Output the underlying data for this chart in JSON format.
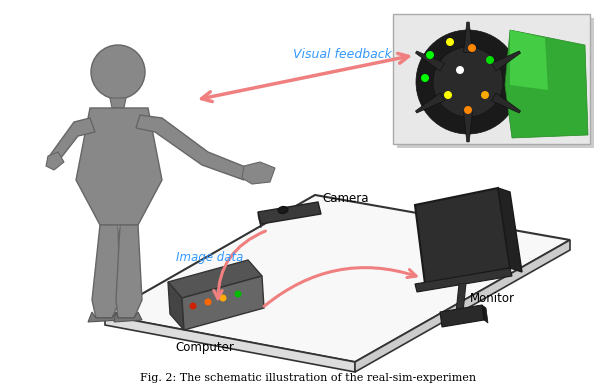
{
  "title": "",
  "caption": "Fig. 2: The schematic illustration of the real-sim-experimen",
  "background_color": "#ffffff",
  "labels": {
    "visual_feedback": "Visual feedback",
    "image_data": "Image data",
    "camera": "Camera",
    "computer": "Computer",
    "monitor": "Monitor"
  },
  "label_color": "#3399ff",
  "device_label_color": "#000000",
  "arrow_color": "#f08080",
  "table_color": "#ffffff",
  "table_edge_color": "#222222"
}
